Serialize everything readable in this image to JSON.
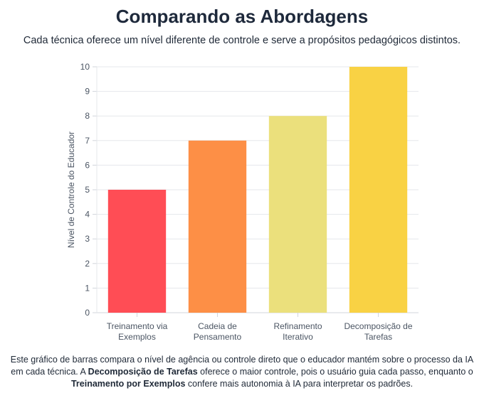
{
  "header": {
    "title": "Comparando as Abordagens",
    "subtitle": "Cada técnica oferece um nível diferente de controle e serve a propósitos pedagógicos distintos."
  },
  "chart_data": {
    "type": "bar",
    "categories": [
      [
        "Treinamento via",
        "Exemplos"
      ],
      [
        "Cadeia de",
        "Pensamento"
      ],
      [
        "Refinamento",
        "Iterativo"
      ],
      [
        "Decomposição de",
        "Tarefas"
      ]
    ],
    "values": [
      5,
      7,
      8,
      10
    ],
    "colors": [
      "#ff4d55",
      "#fd8f46",
      "#ebe07c",
      "#f9d244"
    ],
    "title": "",
    "xlabel": "",
    "ylabel": "Nível de Controle do Educador",
    "ylim": [
      0,
      10
    ],
    "yticks": [
      0,
      1,
      2,
      3,
      4,
      5,
      6,
      7,
      8,
      9,
      10
    ],
    "grid": true,
    "legend": "none"
  },
  "caption": {
    "part1": "Este gráfico de barras compara o nível de agência ou controle direto que o educador mantém sobre o processo da IA em cada técnica. A ",
    "bold1": "Decomposição de Tarefas",
    "part2": " oferece o maior controle, pois o usuário guia cada passo, enquanto o ",
    "bold2": "Treinamento por Exemplos",
    "part3": " confere mais autonomia à IA para interpretar os padrões."
  }
}
